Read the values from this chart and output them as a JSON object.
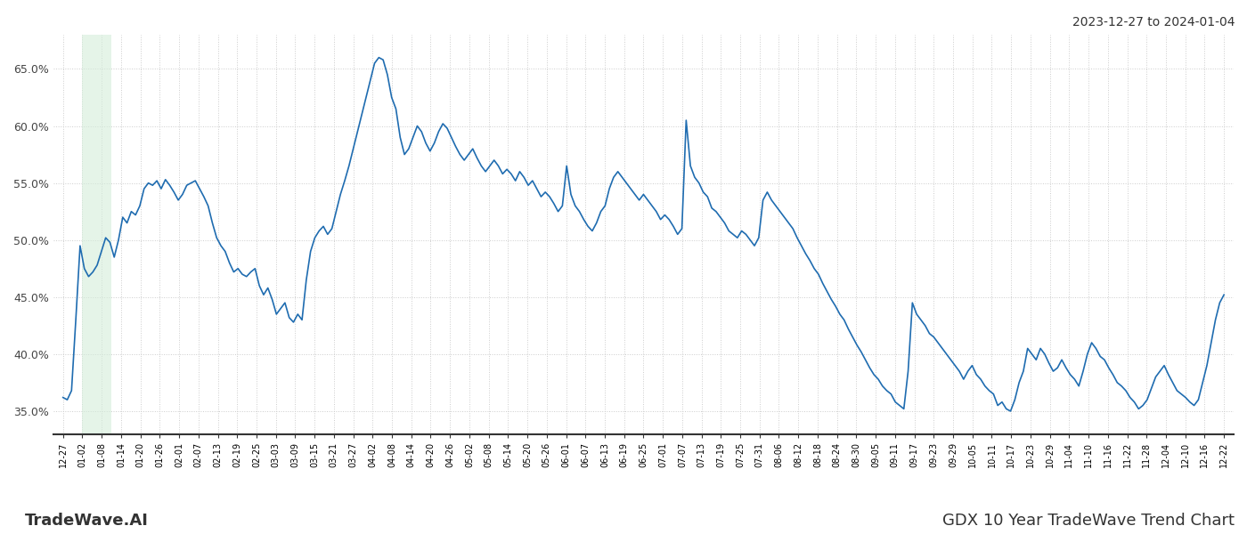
{
  "title_top_right": "2023-12-27 to 2024-01-04",
  "title_bottom_left": "TradeWave.AI",
  "title_bottom_right": "GDX 10 Year TradeWave Trend Chart",
  "line_color": "#1f6cb0",
  "line_width": 1.2,
  "shade_color": "#d4edda",
  "shade_alpha": 0.6,
  "background_color": "#ffffff",
  "grid_color": "#cccccc",
  "ylim": [
    33.0,
    68.0
  ],
  "yticks": [
    35.0,
    40.0,
    45.0,
    50.0,
    55.0,
    60.0,
    65.0
  ],
  "x_labels": [
    "12-27",
    "01-02",
    "01-08",
    "01-14",
    "01-20",
    "01-26",
    "02-01",
    "02-07",
    "02-13",
    "02-19",
    "02-25",
    "03-03",
    "03-09",
    "03-15",
    "03-21",
    "03-27",
    "04-02",
    "04-08",
    "04-14",
    "04-20",
    "04-26",
    "05-02",
    "05-08",
    "05-14",
    "05-20",
    "05-26",
    "06-01",
    "06-07",
    "06-13",
    "06-19",
    "06-25",
    "07-01",
    "07-07",
    "07-13",
    "07-19",
    "07-25",
    "07-31",
    "08-06",
    "08-12",
    "08-18",
    "08-24",
    "08-30",
    "09-05",
    "09-11",
    "09-17",
    "09-23",
    "09-29",
    "10-05",
    "10-11",
    "10-17",
    "10-23",
    "10-29",
    "11-04",
    "11-10",
    "11-16",
    "11-22",
    "11-28",
    "12-04",
    "12-10",
    "12-16",
    "12-22"
  ],
  "values": [
    36.2,
    36.0,
    36.8,
    43.0,
    49.5,
    47.5,
    46.8,
    47.2,
    47.8,
    49.0,
    50.2,
    49.8,
    48.5,
    50.0,
    52.0,
    51.5,
    52.5,
    52.2,
    53.0,
    54.5,
    55.0,
    54.8,
    55.2,
    54.5,
    55.3,
    54.8,
    54.2,
    53.5,
    54.0,
    54.8,
    55.0,
    55.2,
    54.5,
    53.8,
    53.0,
    51.5,
    50.2,
    49.5,
    49.0,
    48.0,
    47.2,
    47.5,
    47.0,
    46.8,
    47.2,
    47.5,
    46.0,
    45.2,
    45.8,
    44.8,
    43.5,
    44.0,
    44.5,
    43.2,
    42.8,
    43.5,
    43.0,
    46.5,
    49.0,
    50.2,
    50.8,
    51.2,
    50.5,
    51.0,
    52.5,
    54.0,
    55.2,
    56.5,
    58.0,
    59.5,
    61.0,
    62.5,
    64.0,
    65.5,
    66.0,
    65.8,
    64.5,
    62.5,
    61.5,
    59.0,
    57.5,
    58.0,
    59.0,
    60.0,
    59.5,
    58.5,
    57.8,
    58.5,
    59.5,
    60.2,
    59.8,
    59.0,
    58.2,
    57.5,
    57.0,
    57.5,
    58.0,
    57.2,
    56.5,
    56.0,
    56.5,
    57.0,
    56.5,
    55.8,
    56.2,
    55.8,
    55.2,
    56.0,
    55.5,
    54.8,
    55.2,
    54.5,
    53.8,
    54.2,
    53.8,
    53.2,
    52.5,
    53.0,
    56.5,
    54.0,
    53.0,
    52.5,
    51.8,
    51.2,
    50.8,
    51.5,
    52.5,
    53.0,
    54.5,
    55.5,
    56.0,
    55.5,
    55.0,
    54.5,
    54.0,
    53.5,
    54.0,
    53.5,
    53.0,
    52.5,
    51.8,
    52.2,
    51.8,
    51.2,
    50.5,
    51.0,
    60.5,
    56.5,
    55.5,
    55.0,
    54.2,
    53.8,
    52.8,
    52.5,
    52.0,
    51.5,
    50.8,
    50.5,
    50.2,
    50.8,
    50.5,
    50.0,
    49.5,
    50.2,
    53.5,
    54.2,
    53.5,
    53.0,
    52.5,
    52.0,
    51.5,
    51.0,
    50.2,
    49.5,
    48.8,
    48.2,
    47.5,
    47.0,
    46.2,
    45.5,
    44.8,
    44.2,
    43.5,
    43.0,
    42.2,
    41.5,
    40.8,
    40.2,
    39.5,
    38.8,
    38.2,
    37.8,
    37.2,
    36.8,
    36.5,
    35.8,
    35.5,
    35.2,
    38.5,
    44.5,
    43.5,
    43.0,
    42.5,
    41.8,
    41.5,
    41.0,
    40.5,
    40.0,
    39.5,
    39.0,
    38.5,
    37.8,
    38.5,
    39.0,
    38.2,
    37.8,
    37.2,
    36.8,
    36.5,
    35.5,
    35.8,
    35.2,
    35.0,
    36.0,
    37.5,
    38.5,
    40.5,
    40.0,
    39.5,
    40.5,
    40.0,
    39.2,
    38.5,
    38.8,
    39.5,
    38.8,
    38.2,
    37.8,
    37.2,
    38.5,
    40.0,
    41.0,
    40.5,
    39.8,
    39.5,
    38.8,
    38.2,
    37.5,
    37.2,
    36.8,
    36.2,
    35.8,
    35.2,
    35.5,
    36.0,
    37.0,
    38.0,
    38.5,
    39.0,
    38.2,
    37.5,
    36.8,
    36.5,
    36.2,
    35.8,
    35.5,
    36.0,
    37.5,
    39.0,
    41.0,
    43.0,
    44.5,
    45.2
  ],
  "shade_x_start_label": "01-02",
  "shade_x_end_label": "01-08"
}
